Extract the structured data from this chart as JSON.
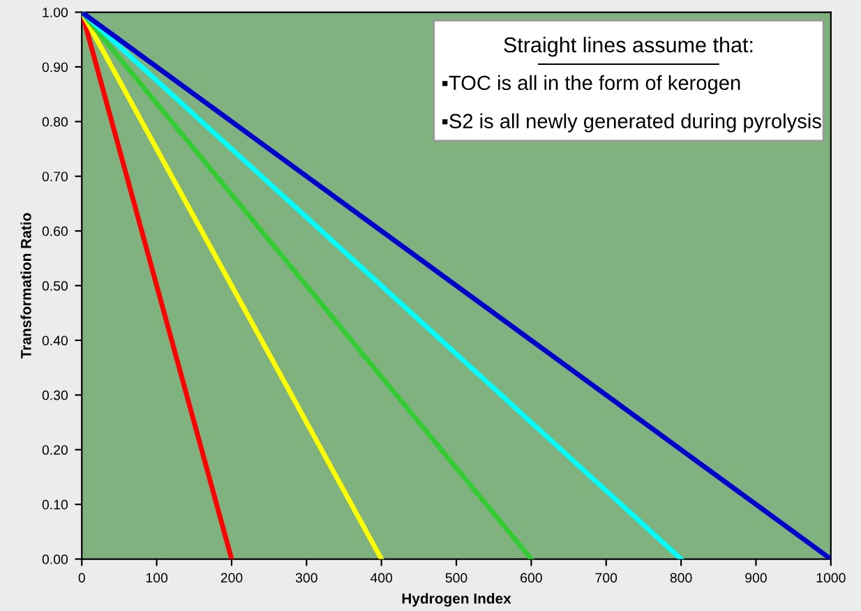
{
  "chart_data": {
    "type": "line",
    "xlabel": "Hydrogen Index",
    "ylabel": "Transformation Ratio",
    "series": [
      {
        "color": "#ff0000",
        "x": [
          0,
          200
        ],
        "values": [
          1.0,
          0.0
        ]
      },
      {
        "color": "#ffff00",
        "x": [
          0,
          400
        ],
        "values": [
          1.0,
          0.0
        ]
      },
      {
        "color": "#33cc33",
        "x": [
          0,
          600
        ],
        "values": [
          1.0,
          0.0
        ]
      },
      {
        "color": "#00ffff",
        "x": [
          0,
          800
        ],
        "values": [
          1.0,
          0.0
        ]
      },
      {
        "color": "#0000cc",
        "x": [
          0,
          1000
        ],
        "values": [
          1.0,
          0.0
        ]
      }
    ],
    "xlim": [
      0,
      1000
    ],
    "ylim": [
      0,
      1
    ],
    "xticks": [
      0,
      100,
      200,
      300,
      400,
      500,
      600,
      700,
      800,
      900,
      1000
    ],
    "yticks": [
      {
        "value": 0,
        "label": "0.00"
      },
      {
        "value": 0.1,
        "label": "0.10"
      },
      {
        "value": 0.2,
        "label": "0.20"
      },
      {
        "value": 0.3,
        "label": "0.30"
      },
      {
        "value": 0.4,
        "label": "0.40"
      },
      {
        "value": 0.5,
        "label": "0.50"
      },
      {
        "value": 0.6,
        "label": "0.60"
      },
      {
        "value": 0.7,
        "label": "0.70"
      },
      {
        "value": 0.8,
        "label": "0.80"
      },
      {
        "value": 0.9,
        "label": "0.90"
      },
      {
        "value": 1,
        "label": "1.00"
      }
    ],
    "grid": false,
    "marker": "none",
    "line_style": "solid",
    "annotations": [
      "Straight lines assume that:",
      "▪TOC is all in the form of kerogen",
      "▪S2 is all newly generated during pyrolysis"
    ]
  }
}
